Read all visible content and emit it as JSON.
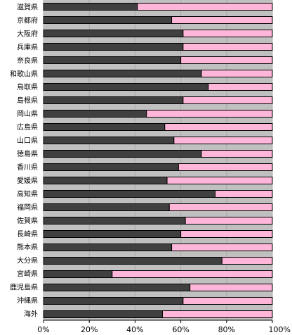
{
  "chart_data": {
    "type": "bar",
    "orientation": "horizontal",
    "stacked": "percent",
    "categories": [
      "滋賀県",
      "京都府",
      "大阪府",
      "兵庫県",
      "奈良県",
      "和歌山県",
      "鳥取県",
      "島根県",
      "岡山県",
      "広島県",
      "山口県",
      "徳島県",
      "香川県",
      "愛媛県",
      "高知県",
      "福岡県",
      "佐賀県",
      "長崎県",
      "熊本県",
      "大分県",
      "宮崎県",
      "鹿児島県",
      "沖縄県",
      "海外"
    ],
    "series": [
      {
        "color": "#404040",
        "values": [
          41,
          56,
          61,
          61,
          60,
          69,
          72,
          61,
          45,
          53,
          57,
          69,
          59,
          54,
          75,
          55,
          62,
          60,
          56,
          78,
          30,
          64,
          61,
          52
        ]
      },
      {
        "color": "#ffb6d9",
        "values": [
          59,
          44,
          39,
          39,
          40,
          31,
          28,
          39,
          55,
          47,
          43,
          31,
          41,
          46,
          25,
          45,
          38,
          40,
          44,
          22,
          70,
          36,
          39,
          48
        ]
      }
    ],
    "x_ticks": [
      "0%",
      "20%",
      "40%",
      "60%",
      "80%",
      "100%"
    ],
    "xlim": [
      0,
      100
    ],
    "plot_background": "#c0c0c0",
    "grid": true,
    "legend": "none"
  }
}
